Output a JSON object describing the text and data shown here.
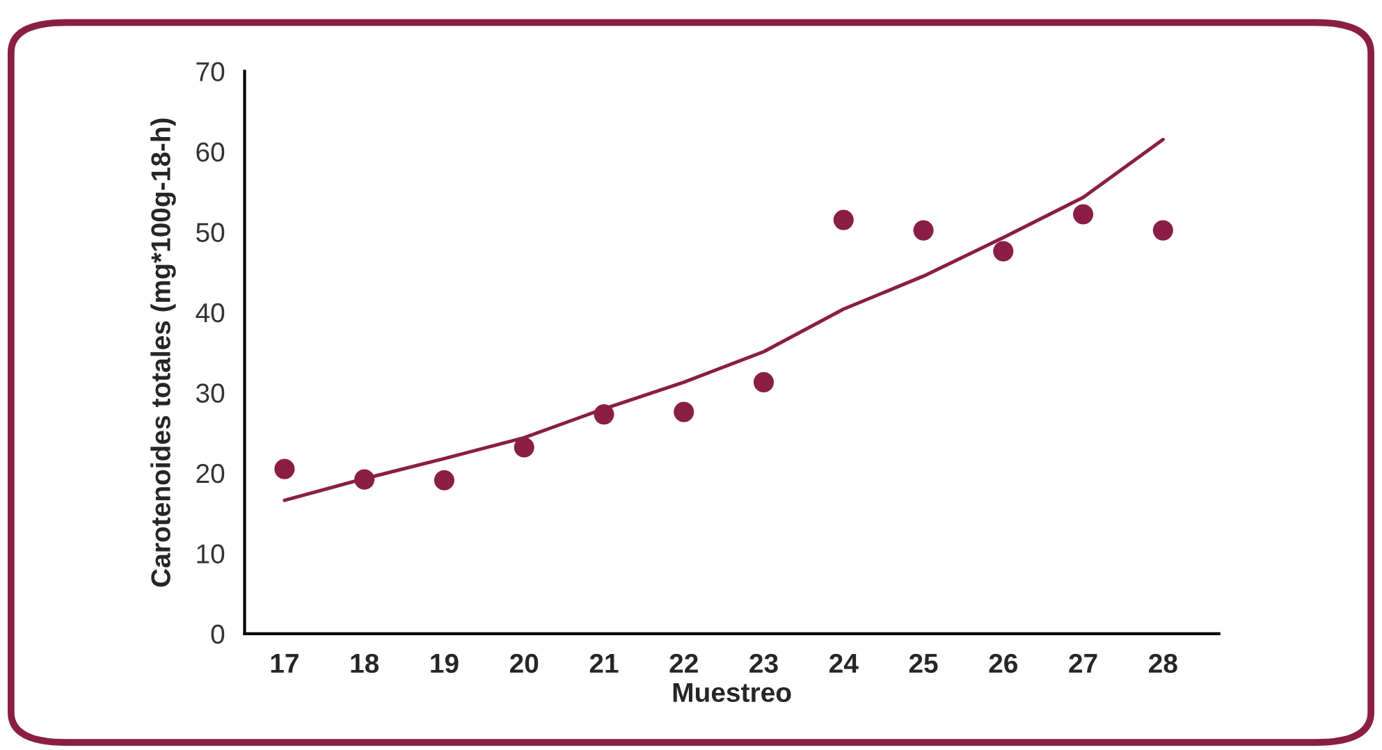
{
  "chart_data": {
    "type": "scatter",
    "xlabel": "Muestreo",
    "ylabel": "Carotenoides totales (mg*100g-18-h)",
    "categories": [
      "17",
      "18",
      "19",
      "20",
      "21",
      "22",
      "23",
      "24",
      "25",
      "26",
      "27",
      "28"
    ],
    "series": [
      {
        "color": "#8a1e45",
        "marker": "circle",
        "values": [
          20.5,
          19.2,
          19.1,
          23.2,
          27.3,
          27.6,
          31.3,
          51.5,
          50.2,
          47.6,
          52.2,
          50.2
        ]
      },
      {
        "type": "line",
        "color": "#8a1e45",
        "marker": "none",
        "line_style": "solid",
        "values": [
          16.6,
          19.3,
          21.8,
          24.4,
          28.0,
          31.3,
          35.1,
          40.4,
          44.5,
          49.3,
          54.3,
          61.5
        ]
      }
    ],
    "ylim": [
      0,
      70
    ],
    "yticks": [
      0,
      10,
      20,
      30,
      40,
      50,
      60,
      70
    ],
    "grid": false,
    "legend": false
  }
}
